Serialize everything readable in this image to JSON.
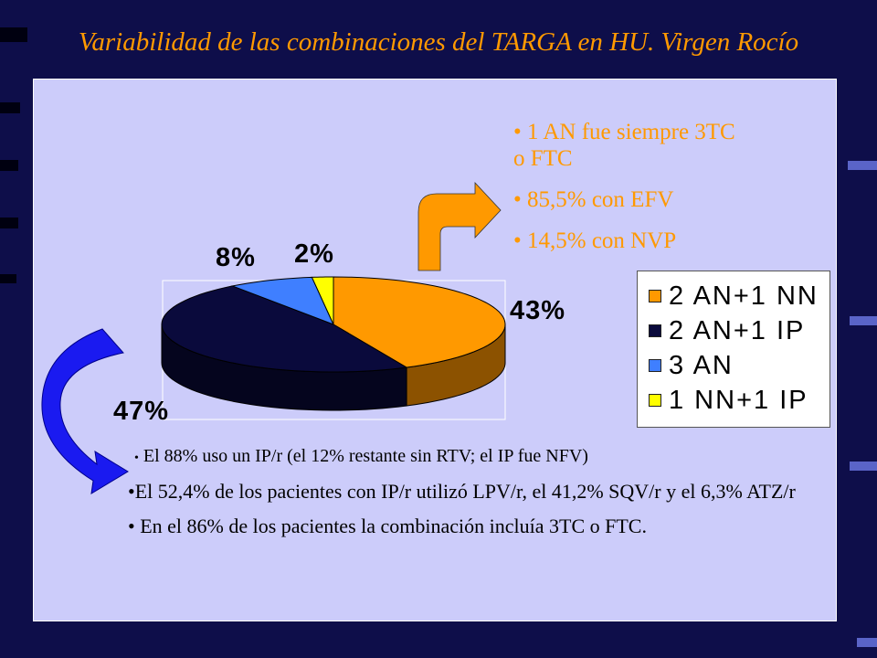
{
  "title": "Variabilidad de las combinaciones del TARGA en HU. Virgen Rocío",
  "orange_bullets": [
    "• 1 AN fue siempre 3TC o FTC",
    "• 85,5% con EFV",
    "• 14,5% con NVP"
  ],
  "black_bullets": {
    "b1_bullet": "•",
    "b1_text": "El 88% uso un IP/r (el 12% restante sin RTV; el IP fue NFV)",
    "b2": "•El 52,4% de los pacientes con IP/r utilizó LPV/r, el 41,2% SQV/r y el 6,3% ATZ/r",
    "b3": "• En el 86% de los pacientes la combinación incluía 3TC o FTC."
  },
  "colors": {
    "background": "#0e0e4a",
    "panel": "#ccccfa",
    "title": "#ff9900",
    "arrow_orange": "#ff9900",
    "arrow_blue": "#1a1af0"
  },
  "chart_data": {
    "type": "pie",
    "style": "3d",
    "categories": [
      "2 AN+1 NN",
      "2 AN+1 IP",
      "3 AN",
      "1 NN+1 IP"
    ],
    "values": [
      43,
      47,
      8,
      2
    ],
    "value_labels": [
      "43%",
      "47%",
      "8%",
      "2%"
    ],
    "colors": [
      "#ff9900",
      "#0a0a3c",
      "#3f7fff",
      "#ffff00"
    ],
    "side_colors": [
      "#8c5200",
      "#05051e",
      "#1e3f8c",
      "#8c8c00"
    ],
    "legend": {
      "entries": [
        "2 AN+1 NN",
        "2 AN+1 IP",
        "3 AN",
        "1 NN+1 IP"
      ],
      "placement": "right"
    }
  }
}
